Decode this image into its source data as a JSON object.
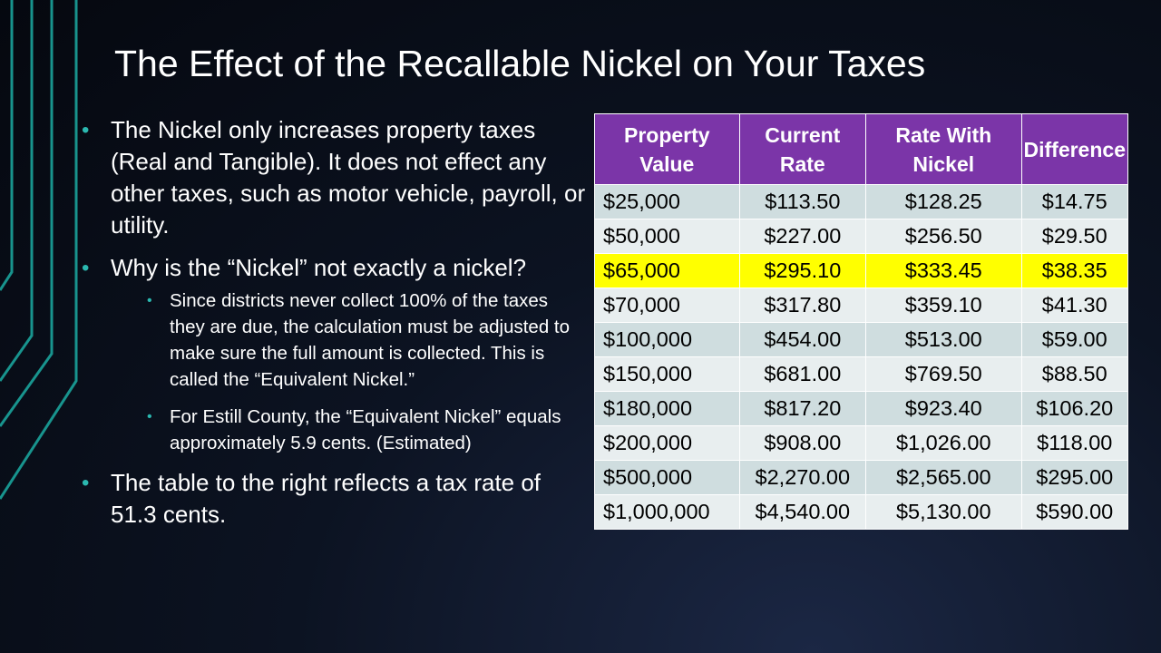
{
  "title": "The Effect of the Recallable Nickel on Your Taxes",
  "bullets": {
    "b1": "The Nickel only increases property taxes (Real and Tangible).  It does not effect any other taxes, such as motor vehicle, payroll, or utility.",
    "b2": "Why is the “Nickel” not exactly a nickel?",
    "b2_sub1": "Since districts never collect 100% of the taxes they are due, the calculation must be adjusted to make sure the full amount is collected.  This is called the “Equivalent Nickel.”",
    "b2_sub2": "For Estill County, the “Equivalent Nickel” equals approximately 5.9 cents. (Estimated)",
    "b3": "The table to the right reflects a tax rate of 51.3 cents."
  },
  "table": {
    "headers": [
      "Property Value",
      "Current Rate",
      "Rate With Nickel",
      "Difference"
    ],
    "rows": [
      [
        "$25,000",
        "$113.50",
        "$128.25",
        "$14.75"
      ],
      [
        "$50,000",
        "$227.00",
        "$256.50",
        "$29.50"
      ],
      [
        "$65,000",
        "$295.10",
        "$333.45",
        "$38.35"
      ],
      [
        "$70,000",
        "$317.80",
        "$359.10",
        "$41.30"
      ],
      [
        "$100,000",
        "$454.00",
        "$513.00",
        "$59.00"
      ],
      [
        "$150,000",
        "$681.00",
        "$769.50",
        "$88.50"
      ],
      [
        "$180,000",
        "$817.20",
        "$923.40",
        "$106.20"
      ],
      [
        "$200,000",
        "$908.00",
        "$1,026.00",
        "$118.00"
      ],
      [
        "$500,000",
        "$2,270.00",
        "$2,565.00",
        "$295.00"
      ],
      [
        "$1,000,000",
        "$4,540.00",
        "$5,130.00",
        "$590.00"
      ]
    ]
  },
  "colors": {
    "header_bg": "#7b35a8",
    "row_odd": "#cfdddf",
    "row_even": "#e8eeef",
    "highlight": "#ffff00",
    "accent_lines": "#1aa39b"
  }
}
